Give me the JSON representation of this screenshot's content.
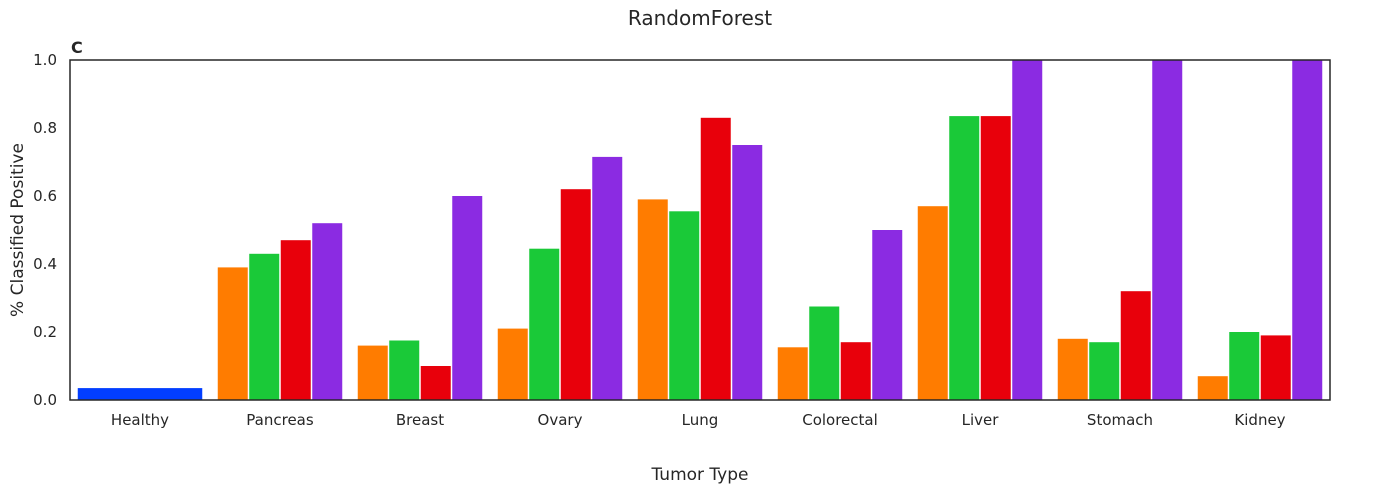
{
  "chart_data": {
    "type": "bar",
    "title": "RandomForest",
    "panel_label": "C",
    "xlabel": "Tumor Type",
    "ylabel": "% Classified Positive",
    "ylim": [
      0,
      1.0
    ],
    "yticks": [
      "0.0",
      "0.2",
      "0.4",
      "0.6",
      "0.8",
      "1.0"
    ],
    "grid": false,
    "legend": "none",
    "categories": [
      "Healthy",
      "Pancreas",
      "Breast",
      "Ovary",
      "Lung",
      "Colorectal",
      "Liver",
      "Stomach",
      "Kidney"
    ],
    "series": [
      {
        "color": "#023eff",
        "values": [
          0.035,
          null,
          null,
          null,
          null,
          null,
          null,
          null,
          null
        ]
      },
      {
        "color": "#ff7c00",
        "values": [
          null,
          0.39,
          0.16,
          0.21,
          0.59,
          0.155,
          0.57,
          0.18,
          0.07
        ]
      },
      {
        "color": "#1ac938",
        "values": [
          null,
          0.43,
          0.175,
          0.445,
          0.555,
          0.275,
          0.835,
          0.17,
          0.2
        ]
      },
      {
        "color": "#e8000b",
        "values": [
          null,
          0.47,
          0.1,
          0.62,
          0.83,
          0.17,
          0.835,
          0.32,
          0.19
        ]
      },
      {
        "color": "#8b2be2",
        "values": [
          null,
          0.52,
          0.6,
          0.715,
          0.75,
          0.5,
          1.0,
          1.0,
          1.0
        ]
      }
    ]
  }
}
